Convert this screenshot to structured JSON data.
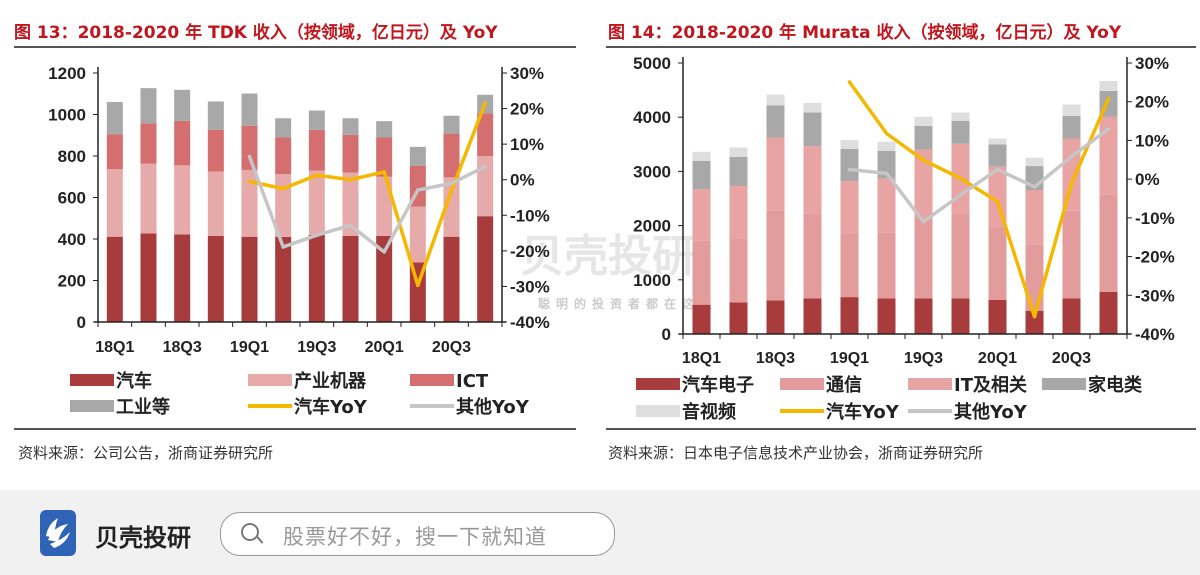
{
  "chart_data": [
    {
      "type": "bar",
      "stacked": true,
      "title": "图 13：2018-2020 年 TDK 收入（按领域，亿日元）及 YoY",
      "categories": [
        "18Q1",
        "18Q2",
        "18Q3",
        "18Q4",
        "19Q1",
        "19Q2",
        "19Q3",
        "19Q4",
        "20Q1",
        "20Q2",
        "20Q3",
        "20Q4"
      ],
      "x_tick_labels": [
        "18Q1",
        "18Q3",
        "19Q1",
        "19Q3",
        "20Q1",
        "20Q3"
      ],
      "ylim": [
        0,
        1200
      ],
      "y_ticks": [
        "0",
        "200",
        "400",
        "600",
        "800",
        "1000",
        "1200"
      ],
      "y2lim": [
        -40,
        30
      ],
      "y2_ticks": [
        "-40%",
        "-30%",
        "-20%",
        "-10%",
        "0%",
        "10%",
        "20%",
        "30%"
      ],
      "series": [
        {
          "name": "汽车",
          "color": "#a83c3c",
          "values": [
            411,
            427,
            422,
            415,
            411,
            410,
            420,
            415,
            415,
            287,
            411,
            510
          ]
        },
        {
          "name": "产业机器",
          "color": "#e6aaaa",
          "values": [
            326,
            336,
            333,
            310,
            322,
            302,
            310,
            305,
            285,
            269,
            286,
            290
          ]
        },
        {
          "name": "ICT",
          "color": "#d56e6e",
          "values": [
            168,
            194,
            214,
            201,
            212,
            177,
            196,
            182,
            189,
            196,
            211,
            206
          ]
        },
        {
          "name": "工业等",
          "color": "#a8a8a8",
          "values": [
            155,
            170,
            150,
            137,
            156,
            93,
            93,
            80,
            79,
            92,
            86,
            89
          ]
        }
      ],
      "lines": [
        {
          "name": "汽车YoY",
          "color": "#f5b800",
          "values": [
            null,
            null,
            null,
            null,
            -0.5,
            -2.5,
            1.3,
            0,
            2.2,
            -29.7,
            -3,
            21.5
          ]
        },
        {
          "name": "其他YoY",
          "color": "#c6c6c6",
          "values": [
            null,
            null,
            null,
            null,
            6.5,
            -18.9,
            -15.6,
            -12.8,
            -20.3,
            -2.9,
            -1,
            3.7
          ]
        }
      ],
      "legend": "bottom",
      "source": "资料来源：公司公告，浙商证券研究所"
    },
    {
      "type": "bar",
      "stacked": true,
      "title": "图 14：2018-2020 年 Murata 收入（按领域，亿日元）及 YoY",
      "categories": [
        "18Q1",
        "18Q2",
        "18Q3",
        "18Q4",
        "19Q1",
        "19Q2",
        "19Q3",
        "19Q4",
        "20Q1",
        "20Q2",
        "20Q3",
        "20Q4"
      ],
      "x_tick_labels": [
        "18Q1",
        "18Q3",
        "19Q1",
        "19Q3",
        "20Q1",
        "20Q3"
      ],
      "ylim": [
        0,
        5000
      ],
      "y_ticks": [
        "0",
        "1000",
        "2000",
        "3000",
        "4000",
        "5000"
      ],
      "y2lim": [
        -40,
        30
      ],
      "y2_ticks": [
        "-40%",
        "-30%",
        "-20%",
        "-10%",
        "0%",
        "10%",
        "20%",
        "30%"
      ],
      "series": [
        {
          "name": "汽车电子",
          "color": "#a83c3c",
          "values": [
            541,
            583,
            620,
            656,
            681,
            656,
            656,
            656,
            632,
            429,
            656,
            779
          ]
        },
        {
          "name": "通信",
          "color": "#e39c9c",
          "values": [
            1180,
            1180,
            1650,
            1560,
            1180,
            1220,
            1500,
            1560,
            1340,
            1220,
            1620,
            1800
          ]
        },
        {
          "name": "IT及相关",
          "color": "#e8a3a3",
          "values": [
            948,
            967,
            1356,
            1250,
            961,
            995,
            1249,
            1293,
            1114,
            1007,
            1331,
            1427
          ]
        },
        {
          "name": "家电类",
          "color": "#a8a8a8",
          "values": [
            527,
            540,
            595,
            620,
            595,
            509,
            435,
            424,
            411,
            442,
            418,
            479
          ]
        },
        {
          "name": "音视频",
          "color": "#dedede",
          "values": [
            166,
            172,
            196,
            178,
            160,
            166,
            166,
            153,
            110,
            154,
            208,
            184
          ]
        }
      ],
      "lines": [
        {
          "name": "汽车YoY",
          "color": "#f5b800",
          "values": [
            null,
            null,
            null,
            null,
            25.1,
            11.8,
            4.9,
            0.2,
            -5.8,
            -35.5,
            -1.1,
            20.8
          ]
        },
        {
          "name": "其他YoY",
          "color": "#c6c6c6",
          "values": [
            null,
            null,
            null,
            null,
            2.5,
            1.5,
            -11,
            -4.1,
            2.5,
            -2,
            5.8,
            13
          ]
        }
      ],
      "legend": "bottom",
      "source": "资料来源：日本电子信息技术产业协会，浙商证券研究所"
    }
  ],
  "watermark": {
    "brand": "贝壳投研",
    "slogan": "聪明的投资者都在这里"
  },
  "footer": {
    "brand": "贝壳投研",
    "search_placeholder": "股票好不好，搜一下就知道"
  }
}
